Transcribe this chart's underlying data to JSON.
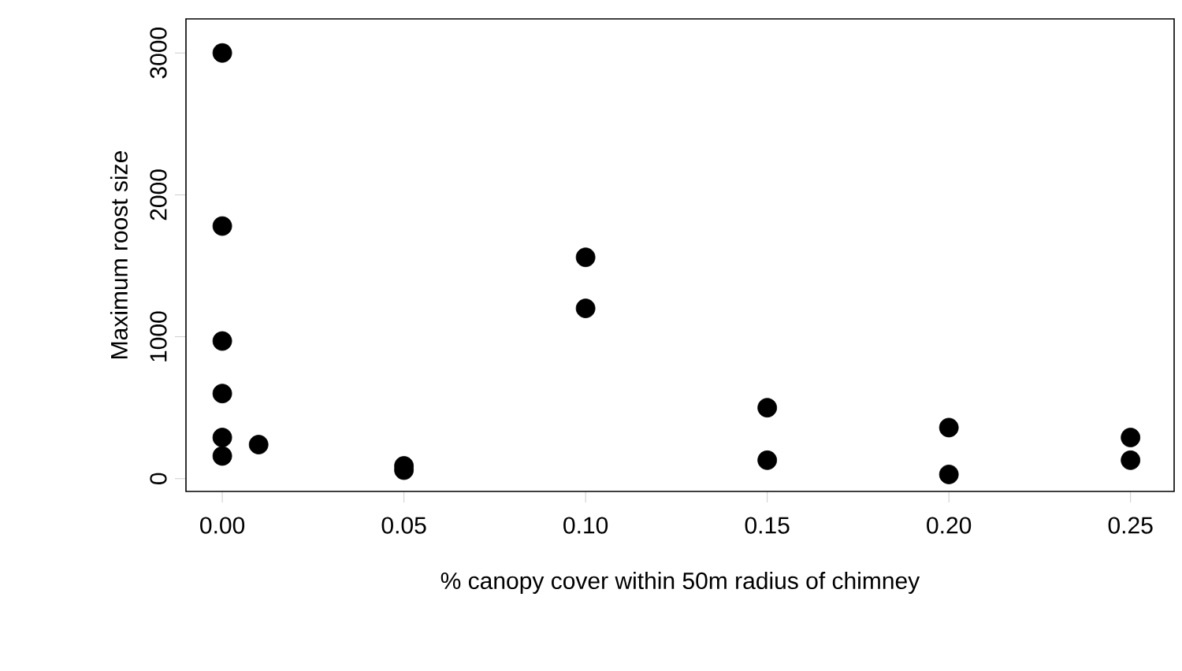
{
  "chart_data": {
    "type": "scatter",
    "xlabel": "% canopy cover within 50m radius of chimney",
    "ylabel": "Maximum roost size",
    "x": [
      0,
      0,
      0,
      0,
      0,
      0,
      0.01,
      0.05,
      0.05,
      0.1,
      0.1,
      0.15,
      0.15,
      0.2,
      0.2,
      0.25,
      0.25
    ],
    "values": [
      3000,
      1780,
      970,
      600,
      290,
      160,
      240,
      90,
      60,
      1560,
      1200,
      500,
      130,
      360,
      30,
      290,
      130
    ],
    "color": "#000000",
    "grid": false,
    "xlim": [
      -0.01,
      0.262
    ],
    "ylim": [
      -90,
      3240
    ],
    "xticks": [
      {
        "value": 0,
        "label": "0.00"
      },
      {
        "value": 0.05,
        "label": "0.05"
      },
      {
        "value": 0.1,
        "label": "0.10"
      },
      {
        "value": 0.15,
        "label": "0.15"
      },
      {
        "value": 0.2,
        "label": "0.20"
      },
      {
        "value": 0.25,
        "label": "0.25"
      }
    ],
    "yticks": [
      0,
      1000,
      2000,
      3000
    ]
  }
}
